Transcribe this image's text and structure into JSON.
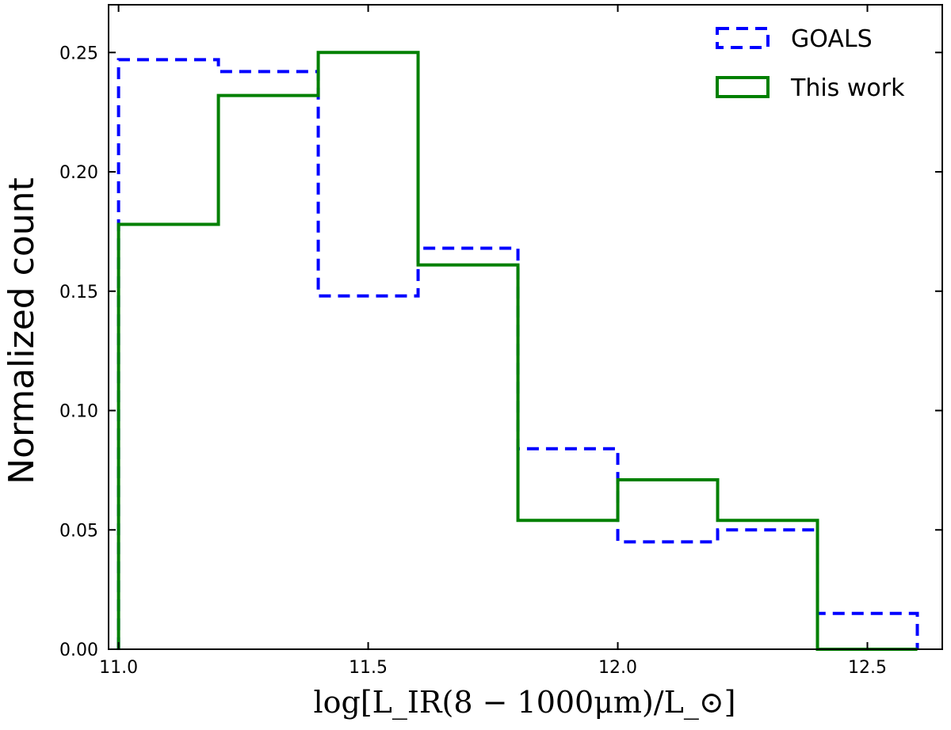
{
  "chart_data": {
    "type": "histogram",
    "title": "",
    "xlabel": "log[L_IR(8 − 1000μm)/L_⊙]",
    "ylabel": "Normalized count",
    "xlim": [
      10.98,
      12.65
    ],
    "ylim": [
      0.0,
      0.27
    ],
    "xticks": [
      11.0,
      11.5,
      12.0,
      12.5
    ],
    "xtick_labels": [
      "11.0",
      "11.5",
      "12.0",
      "12.5"
    ],
    "yticks": [
      0.0,
      0.05,
      0.1,
      0.15,
      0.2,
      0.25
    ],
    "ytick_labels": [
      "0.00",
      "0.05",
      "0.10",
      "0.15",
      "0.20",
      "0.25"
    ],
    "grid": false,
    "legend_position": "top-right",
    "bin_edges": [
      11.0,
      11.2,
      11.4,
      11.6,
      11.8,
      12.0,
      12.2,
      12.4,
      12.6
    ],
    "series": [
      {
        "name": "GOALS",
        "color": "#0000ff",
        "style": "dashed",
        "values": [
          0.247,
          0.242,
          0.148,
          0.168,
          0.084,
          0.045,
          0.05,
          0.015
        ]
      },
      {
        "name": "This work",
        "color": "#008000",
        "style": "solid",
        "values": [
          0.178,
          0.232,
          0.25,
          0.161,
          0.054,
          0.071,
          0.054,
          0.0
        ]
      }
    ]
  }
}
